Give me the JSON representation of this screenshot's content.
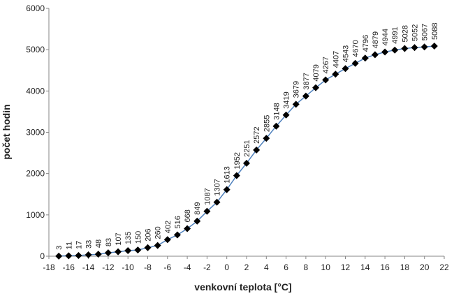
{
  "chart_data": {
    "type": "line",
    "title": "",
    "xlabel": "venkovní teplota [°C]",
    "ylabel": "počet hodin",
    "xlim": [
      -18,
      22
    ],
    "ylim": [
      0,
      6000
    ],
    "x_ticks": [
      "-18",
      "-16",
      "-14",
      "-12",
      "-10",
      "-8",
      "-6",
      "-4",
      "-2",
      "0",
      "2",
      "4",
      "6",
      "8",
      "10",
      "12",
      "14",
      "16",
      "18",
      "20",
      "22"
    ],
    "y_ticks": [
      "0",
      "1000",
      "2000",
      "3000",
      "4000",
      "5000",
      "6000"
    ],
    "grid": false,
    "legend": "none",
    "line_color": "#4f81bd",
    "marker_color": "#000000",
    "marker": "diamond",
    "x": [
      -17,
      -16,
      -15,
      -14,
      -13,
      -12,
      -11,
      -10,
      -9,
      -8,
      -7,
      -6,
      -5,
      -4,
      -3,
      -2,
      -1,
      0,
      1,
      2,
      3,
      4,
      5,
      6,
      7,
      8,
      9,
      10,
      11,
      12,
      13,
      14,
      15,
      16,
      17,
      18,
      19,
      20,
      21
    ],
    "values": [
      3,
      11,
      17,
      33,
      48,
      83,
      107,
      135,
      150,
      206,
      260,
      402,
      516,
      668,
      849,
      1087,
      1307,
      1613,
      1952,
      2251,
      2572,
      2855,
      3148,
      3419,
      3679,
      3877,
      4079,
      4267,
      4407,
      4543,
      4670,
      4796,
      4879,
      4944,
      4991,
      5028,
      5052,
      5067,
      5088
    ]
  }
}
